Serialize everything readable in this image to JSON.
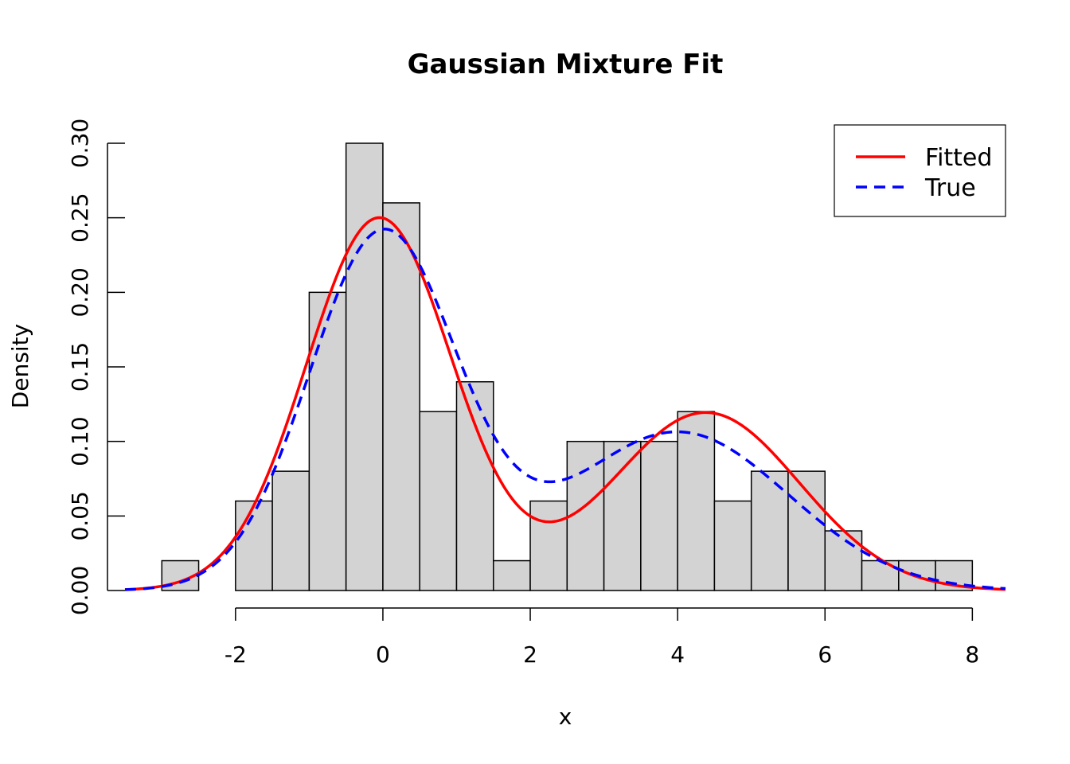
{
  "chart_data": {
    "type": "histogram",
    "title": "Gaussian Mixture Fit",
    "xlabel": "x",
    "ylabel": "Density",
    "xlim": [
      -3.5,
      8.45
    ],
    "ylim": [
      0,
      0.3
    ],
    "x_ticks": [
      -2,
      0,
      2,
      4,
      6,
      8
    ],
    "x_tick_labels": [
      "-2",
      "0",
      "2",
      "4",
      "6",
      "8"
    ],
    "y_ticks": [
      0,
      0.05,
      0.1,
      0.15,
      0.2,
      0.25,
      0.3
    ],
    "y_tick_labels": [
      "0.00",
      "0.05",
      "0.10",
      "0.15",
      "0.20",
      "0.25",
      "0.30"
    ],
    "bins": [
      {
        "start": -3.0,
        "end": -2.5,
        "density": 0.02
      },
      {
        "start": -2.5,
        "end": -2.0,
        "density": 0.0
      },
      {
        "start": -2.0,
        "end": -1.5,
        "density": 0.06
      },
      {
        "start": -1.5,
        "end": -1.0,
        "density": 0.08
      },
      {
        "start": -1.0,
        "end": -0.5,
        "density": 0.2
      },
      {
        "start": -0.5,
        "end": 0.0,
        "density": 0.3
      },
      {
        "start": 0.0,
        "end": 0.5,
        "density": 0.26
      },
      {
        "start": 0.5,
        "end": 1.0,
        "density": 0.12
      },
      {
        "start": 1.0,
        "end": 1.5,
        "density": 0.14
      },
      {
        "start": 1.5,
        "end": 2.0,
        "density": 0.02
      },
      {
        "start": 2.0,
        "end": 2.5,
        "density": 0.06
      },
      {
        "start": 2.5,
        "end": 3.0,
        "density": 0.1
      },
      {
        "start": 3.0,
        "end": 3.5,
        "density": 0.1
      },
      {
        "start": 3.5,
        "end": 4.0,
        "density": 0.1
      },
      {
        "start": 4.0,
        "end": 4.5,
        "density": 0.12
      },
      {
        "start": 4.5,
        "end": 5.0,
        "density": 0.06
      },
      {
        "start": 5.0,
        "end": 5.5,
        "density": 0.08
      },
      {
        "start": 5.5,
        "end": 6.0,
        "density": 0.08
      },
      {
        "start": 6.0,
        "end": 6.5,
        "density": 0.04
      },
      {
        "start": 6.5,
        "end": 7.0,
        "density": 0.02
      },
      {
        "start": 7.0,
        "end": 7.5,
        "density": 0.02
      },
      {
        "start": 7.5,
        "end": 8.0,
        "density": 0.02
      }
    ],
    "bar_fill": "#d3d3d3",
    "series": [
      {
        "name": "Fitted",
        "color": "#ff0000",
        "dash": "solid",
        "components": [
          {
            "weight": 0.62,
            "mean": -0.05,
            "sd": 0.99
          },
          {
            "weight": 0.38,
            "mean": 4.38,
            "sd": 1.27
          }
        ]
      },
      {
        "name": "True",
        "color": "#0000ff",
        "dash": "dashed",
        "components": [
          {
            "weight": 0.6,
            "mean": 0.0,
            "sd": 1.0
          },
          {
            "weight": 0.4,
            "mean": 4.0,
            "sd": 1.5
          }
        ]
      }
    ],
    "legend": {
      "position": "top-right",
      "entries": [
        "Fitted",
        "True"
      ]
    }
  }
}
